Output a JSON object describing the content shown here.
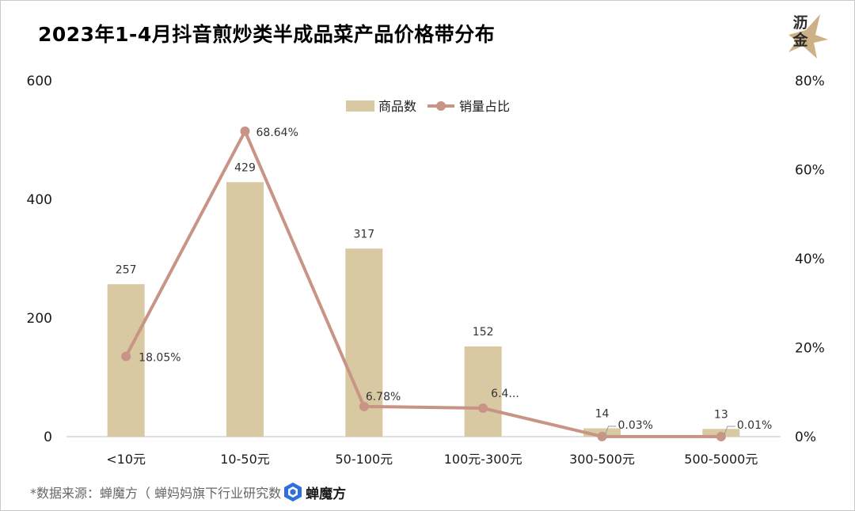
{
  "title": "2023年1-4月抖音煎炒类半成品菜产品价格带分布",
  "footer": {
    "source_text": "*数据来源：蝉魔方（ 蝉妈妈旗下行业研究数",
    "brand_name": "蝉魔方"
  },
  "watermark": {
    "line1": "沥",
    "line2": "金"
  },
  "colors": {
    "bar": "#d8c9a3",
    "line": "#c79486",
    "axis": "#bfbfbf",
    "text": "#1a1a1a"
  },
  "chart_data": {
    "type": "bar",
    "title": "2023年1-4月抖音煎炒类半成品菜产品价格带分布",
    "categories": [
      "<10元",
      "10-50元",
      "50-100元",
      "100元-300元",
      "300-500元",
      "500-5000元"
    ],
    "series": [
      {
        "name": "商品数",
        "type": "bar",
        "axis": "left",
        "values": [
          257,
          429,
          317,
          152,
          14,
          13
        ],
        "labels": [
          "257",
          "429",
          "317",
          "152",
          "14",
          "13"
        ]
      },
      {
        "name": "销量占比",
        "type": "line",
        "axis": "right",
        "values": [
          18.05,
          68.64,
          6.78,
          6.4,
          0.03,
          0.01
        ],
        "labels": [
          "18.05%",
          "68.64%",
          "6.78%",
          "6.4...",
          "0.03%",
          "0.01%"
        ]
      }
    ],
    "y_left": {
      "min": 0,
      "max": 600,
      "ticks": [
        0,
        200,
        400,
        600
      ]
    },
    "y_right": {
      "min": 0,
      "max": 80,
      "ticks": [
        "0%",
        "20%",
        "40%",
        "60%",
        "80%"
      ],
      "tick_values": [
        0,
        20,
        40,
        60,
        80
      ]
    },
    "legend_position": "top-center",
    "grid": false
  }
}
